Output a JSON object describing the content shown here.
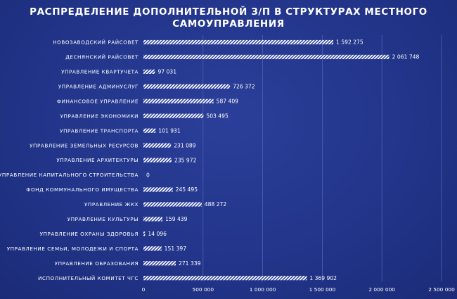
{
  "chart_data": {
    "type": "bar",
    "orientation": "horizontal",
    "title_lines": [
      "РАСПРЕДЕЛЕНИЕ ДОПОЛНИТЕЛЬНОЙ З/П В СТРУКТУРАХ МЕСТНОГО",
      "САМОУПРАВЛЕНИЯ"
    ],
    "categories": [
      "НОВОЗАВОДСКИЙ РАЙСОВЕТ",
      "ДЕСНЯНСКИЙ РАЙСОВЕТ",
      "УПРАВЛЕНИЕ КВАРТУЧЕТА",
      "УПРАВЛЕНИЕ АДМИНУСЛУГ",
      "ФИНАНСОВОЕ УПРАВЛЕНИЕ",
      "УПРАВЛЕНИЕ ЭКОНОМИКИ",
      "УПРАВЛЕНИЕ ТРАНСПОРТА",
      "УПРАВЛЕНИЕ ЗЕМЕЛЬНЫХ РЕСУРСОВ",
      "УПРАВЛЕНИЕ АРХИТЕКТУРЫ",
      "УПРАВЛЕНИЕ КАПИТАЛЬНОГО СТРОИТЕЛЬСТВА",
      "ФОНД КОММУНАЛЬНОГО ИМУЩЕСТВА",
      "УПРАВЛЕНИЕ ЖКХ",
      "УПРАВЛЕНИЕ КУЛЬТУРЫ",
      "УПРАВЛЕНИЕ ОХРАНЫ ЗДОРОВЬЯ",
      "УПРАВЛЕНИЕ СЕМЬИ, МОЛОДЕЖИ И СПОРТА",
      "УПРАВЛЕНИЕ ОБРАЗОВАНИЯ",
      "ИСПОЛНИТЕЛЬНЫЙ КОМИТЕТ ЧГС"
    ],
    "values": [
      1592275,
      2061748,
      97031,
      726372,
      587409,
      503495,
      101931,
      231089,
      235972,
      0,
      245495,
      488272,
      159439,
      14096,
      151397,
      271339,
      1369902
    ],
    "value_labels": [
      "1 592 275",
      "2 061 748",
      "97 031",
      "726 372",
      "587 409",
      "503 495",
      "101 931",
      "231 089",
      "235 972",
      "0",
      "245 495",
      "488 272",
      "159 439",
      "14 096",
      "151 397",
      "271 339",
      "1 369 902"
    ],
    "xlim": [
      0,
      2500000
    ],
    "x_ticks": [
      0,
      500000,
      1000000,
      1500000,
      2000000,
      2500000
    ],
    "x_tick_labels": [
      "0",
      "500 000",
      "1 000 000",
      "1 500 000",
      "2 000 000",
      "2 500 000"
    ],
    "grid": "vertical",
    "bar_pattern": "diagonal-hatch",
    "colors": {
      "background": "#22358a",
      "bar": "#ffffff",
      "grid": "#4d60b0",
      "text": "#ffffff"
    }
  }
}
